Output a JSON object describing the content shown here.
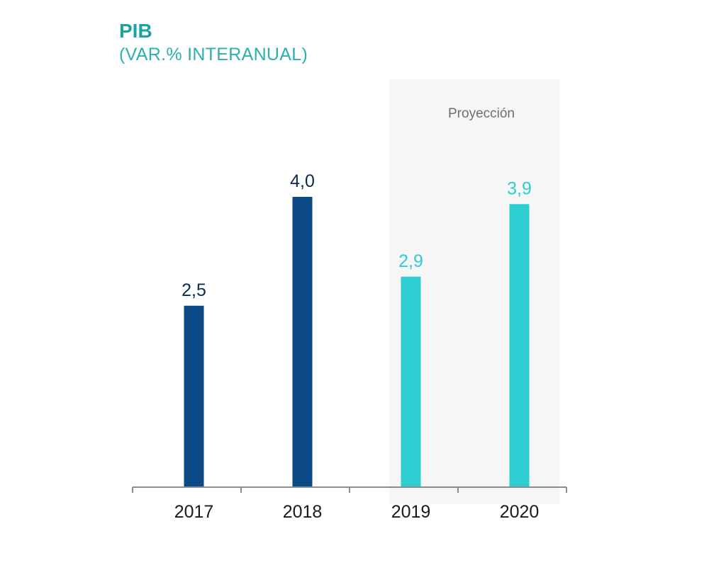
{
  "chart_data": {
    "type": "bar",
    "title": "PIB",
    "subtitle": "(VAR.% INTERANUAL)",
    "categories": [
      "2017",
      "2018",
      "2019",
      "2020"
    ],
    "values": [
      2.5,
      4.0,
      2.9,
      3.9
    ],
    "value_labels": [
      "2,5",
      "4,0",
      "2,9",
      "3,9"
    ],
    "projected": [
      false,
      false,
      true,
      true
    ],
    "annotation": "Proyección",
    "ylim": [
      0,
      5
    ],
    "grid": false,
    "colors": {
      "actual": "#0b4a86",
      "projection": "#2ecdd1",
      "actual_label": "#0d2a4f",
      "projection_label": "#2ecdd1",
      "projection_band": "#f6f6f6",
      "axis": "#8c8c8c",
      "title": "#1ba3a3"
    }
  }
}
